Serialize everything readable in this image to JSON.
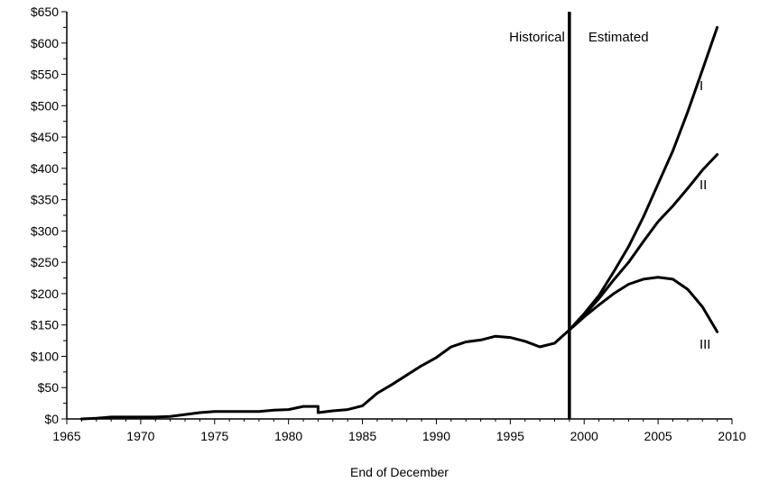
{
  "chart_data": {
    "type": "line",
    "title": "",
    "xlabel": "End of December",
    "ylabel": "",
    "xlim": [
      1965,
      2010
    ],
    "ylim": [
      0,
      650
    ],
    "x_ticks": [
      1965,
      1970,
      1975,
      1980,
      1985,
      1990,
      1995,
      2000,
      2005,
      2010
    ],
    "x_tick_labels": [
      "1965",
      "1970",
      "1975",
      "1980",
      "1985",
      "1990",
      "1995",
      "2000",
      "2005",
      "2010"
    ],
    "y_ticks": [
      0,
      50,
      100,
      150,
      200,
      250,
      300,
      350,
      400,
      450,
      500,
      550,
      600,
      650
    ],
    "y_tick_labels": [
      "$0",
      "$50",
      "$100",
      "$150",
      "$200",
      "$250",
      "$300",
      "$350",
      "$400",
      "$450",
      "$500",
      "$550",
      "$600",
      "$650"
    ],
    "grid": false,
    "divider": {
      "x": 1999,
      "left_label": "Historical",
      "right_label": "Estimated"
    },
    "series": [
      {
        "name": "",
        "x": [
          1966,
          1967,
          1968,
          1969,
          1970,
          1971,
          1972,
          1973,
          1974,
          1975,
          1976,
          1977,
          1978,
          1979,
          1980,
          1981,
          1982,
          1982,
          1983,
          1984,
          1985,
          1986,
          1987,
          1988,
          1989,
          1990,
          1991,
          1992,
          1993,
          1994,
          1995,
          1996,
          1997,
          1998,
          1999
        ],
        "y": [
          0,
          1,
          3,
          3,
          3,
          3,
          4,
          7,
          10,
          12,
          12,
          12,
          12,
          14,
          15,
          20,
          20,
          10,
          13,
          15,
          21,
          41,
          55,
          70,
          85,
          98,
          115,
          123,
          126,
          132,
          130,
          124,
          115,
          121,
          142
        ]
      },
      {
        "name": "I",
        "x": [
          1999,
          2000,
          2001,
          2002,
          2003,
          2004,
          2005,
          2006,
          2007,
          2008,
          2009
        ],
        "y": [
          142,
          168,
          197,
          235,
          275,
          322,
          375,
          428,
          490,
          557,
          625
        ]
      },
      {
        "name": "II",
        "x": [
          1999,
          2000,
          2001,
          2002,
          2003,
          2004,
          2005,
          2006,
          2007,
          2008,
          2009
        ],
        "y": [
          142,
          166,
          192,
          222,
          250,
          283,
          315,
          340,
          368,
          397,
          422
        ]
      },
      {
        "name": "III",
        "x": [
          1999,
          2000,
          2001,
          2002,
          2003,
          2004,
          2005,
          2006,
          2007,
          2008,
          2009
        ],
        "y": [
          142,
          163,
          182,
          200,
          215,
          223,
          226,
          223,
          207,
          179,
          139
        ]
      }
    ],
    "series_label_anchor": [
      {
        "series": "I",
        "x": 2007.8,
        "y": 525
      },
      {
        "series": "II",
        "x": 2007.8,
        "y": 367
      },
      {
        "series": "III",
        "x": 2007.8,
        "y": 112
      }
    ]
  }
}
